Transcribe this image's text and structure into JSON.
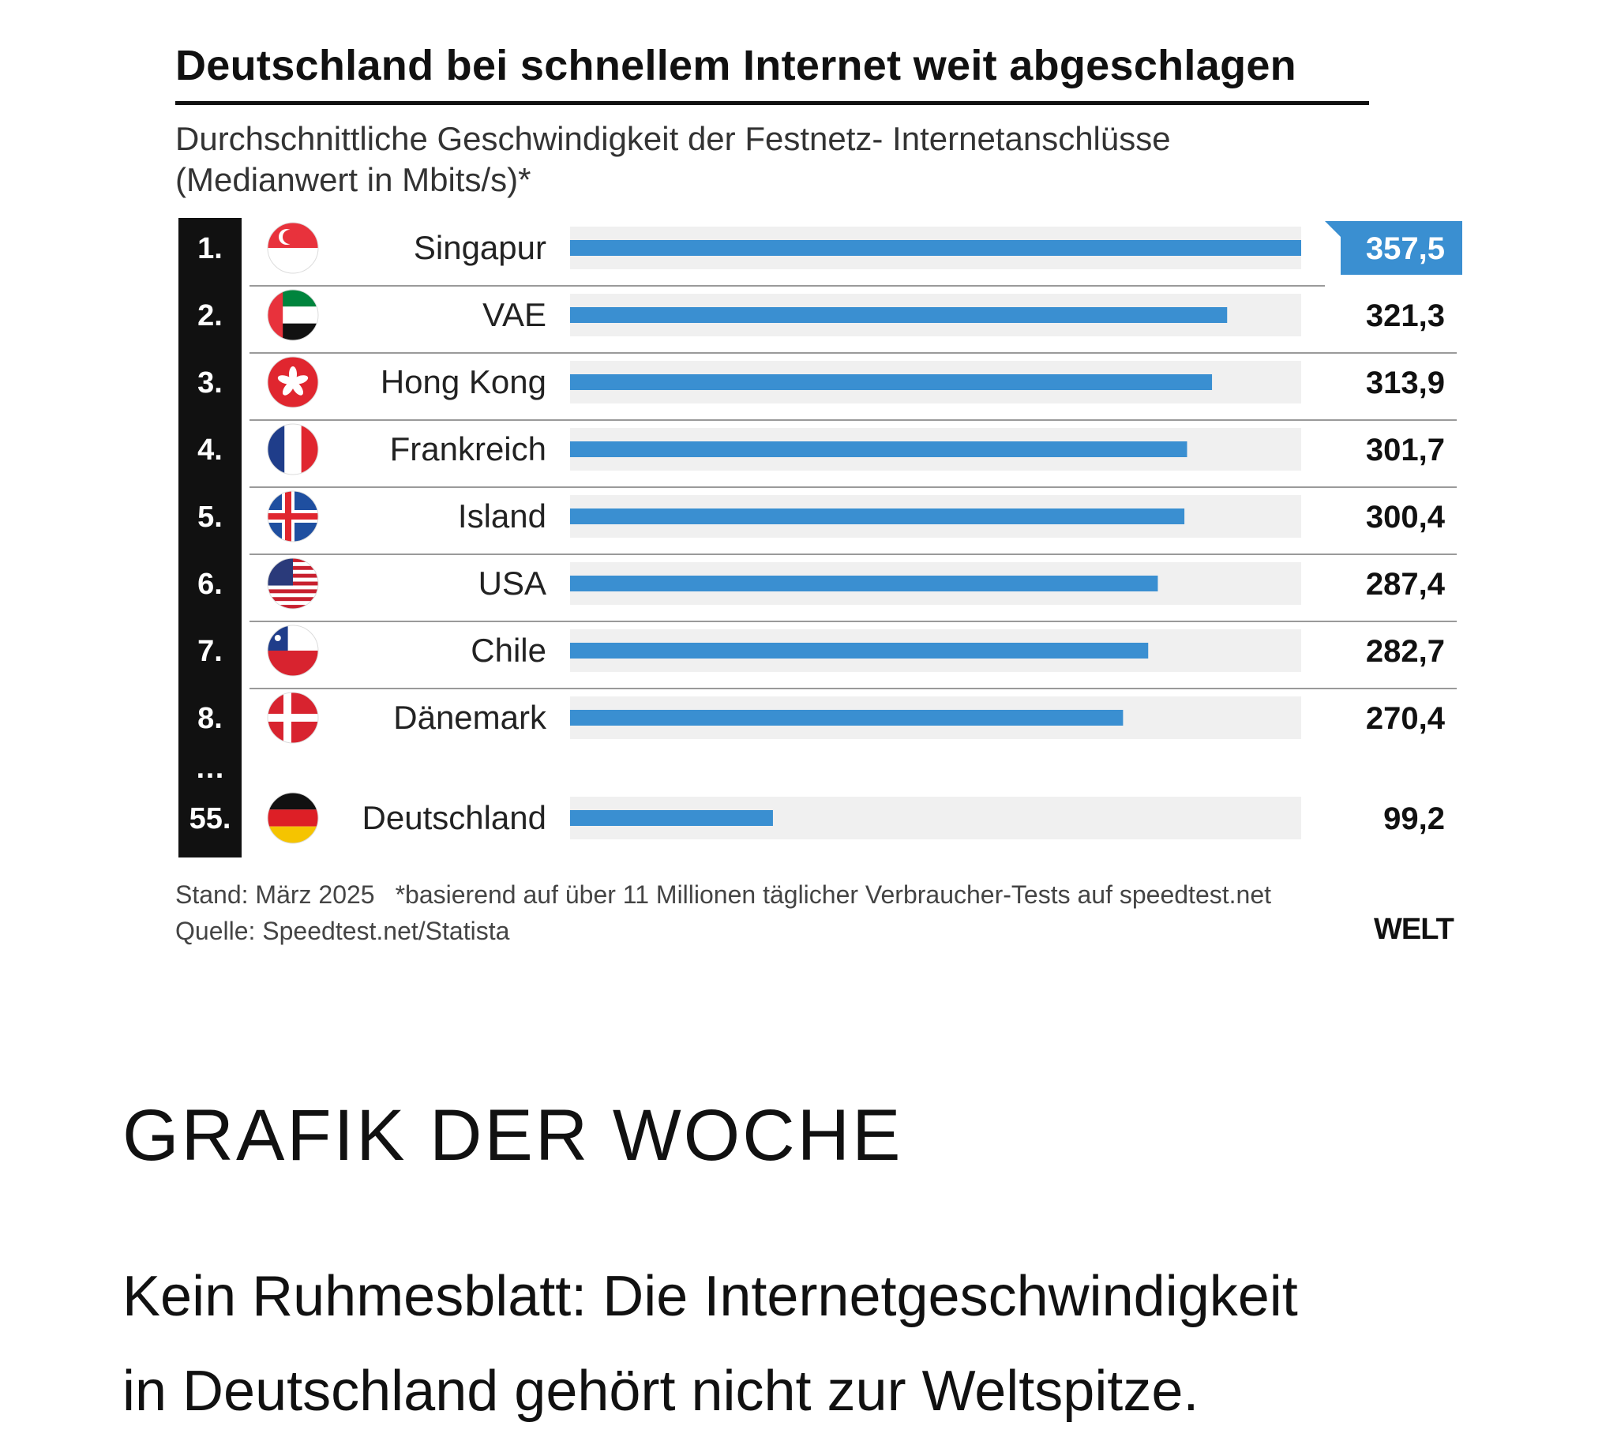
{
  "chart": {
    "title": "Deutschland bei schnellem Internet weit abgeschlagen",
    "subtitle_line1": "Durchschnittliche Geschwindigkeit der Festnetz- Internetanschlüsse",
    "subtitle_line2": "(Medianwert in Mbits/s)*",
    "ellipsis": "…",
    "footnote_date": "Stand: März 2025",
    "footnote_note": "*basierend auf über 11 Millionen täglicher Verbraucher-Tests  auf speedtest.net",
    "footnote_source": "Quelle: Speedtest.net/Statista",
    "brand": "WELT"
  },
  "chart_data": {
    "type": "bar",
    "orientation": "horizontal",
    "title": "Deutschland bei schnellem Internet weit abgeschlagen",
    "subtitle": "Durchschnittliche Geschwindigkeit der Festnetz- Internetanschlüsse (Medianwert in Mbits/s)*",
    "xlim": [
      0,
      357.5
    ],
    "grid": false,
    "legend": "none",
    "bar_color": "#3a8fd1",
    "track_color": "#f0f0f0",
    "highlight_color": "#3a8fd1",
    "rows": [
      {
        "rank": "1.",
        "country": "Singapur",
        "flag": "singapore-flag",
        "value": 357.5,
        "label": "357,5"
      },
      {
        "rank": "2.",
        "country": "VAE",
        "flag": "uae-flag",
        "value": 321.3,
        "label": "321,3"
      },
      {
        "rank": "3.",
        "country": "Hong Kong",
        "flag": "hongkong-flag",
        "value": 313.9,
        "label": "313,9"
      },
      {
        "rank": "4.",
        "country": "Frankreich",
        "flag": "france-flag",
        "value": 301.7,
        "label": "301,7"
      },
      {
        "rank": "5.",
        "country": "Island",
        "flag": "iceland-flag",
        "value": 300.4,
        "label": "300,4"
      },
      {
        "rank": "6.",
        "country": "USA",
        "flag": "usa-flag",
        "value": 287.4,
        "label": "287,4"
      },
      {
        "rank": "7.",
        "country": "Chile",
        "flag": "chile-flag",
        "value": 282.7,
        "label": "282,7"
      },
      {
        "rank": "8.",
        "country": "Dänemark",
        "flag": "denmark-flag",
        "value": 270.4,
        "label": "270,4"
      },
      {
        "rank": "55.",
        "country": "Deutschland",
        "flag": "germany-flag",
        "value": 99.2,
        "label": "99,2"
      }
    ]
  },
  "article": {
    "section_heading": "GRAFIK DER WOCHE",
    "lead_line1": "Kein Ruhmesblatt: Die Internetgeschwindigkeit",
    "lead_line2": "in Deutschland gehört nicht zur Weltspitze."
  }
}
